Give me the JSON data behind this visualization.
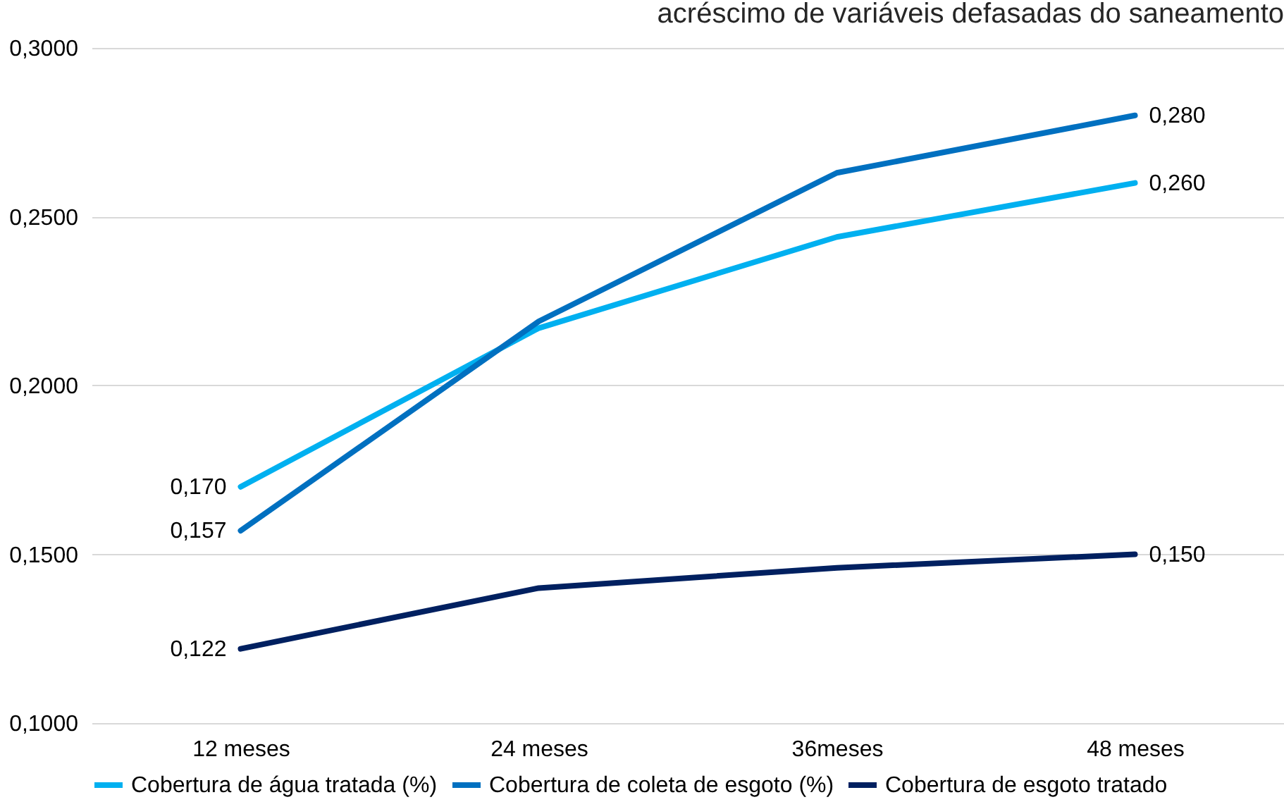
{
  "chart_data": {
    "type": "line",
    "title": "acréscimo de variáveis defasadas do saneamento",
    "categories": [
      "12 meses",
      "24 meses",
      "36meses",
      "48 meses"
    ],
    "series": [
      {
        "name": "Cobertura de água tratada (%)",
        "color": "#00b0f0",
        "values": [
          0.17,
          0.217,
          0.244,
          0.26
        ],
        "value_labels": [
          "0,170",
          null,
          null,
          "0,260"
        ]
      },
      {
        "name": "Cobertura de coleta de esgoto (%)",
        "color": "#0070c0",
        "values": [
          0.157,
          0.219,
          0.263,
          0.28
        ],
        "value_labels": [
          "0,157",
          null,
          null,
          "0,280"
        ]
      },
      {
        "name": "Cobertura de esgoto tratado",
        "color": "#002060",
        "values": [
          0.122,
          0.14,
          0.146,
          0.15
        ],
        "value_labels": [
          "0,122",
          null,
          null,
          "0,150"
        ]
      }
    ],
    "ylim": [
      0.1,
      0.3
    ],
    "yticks": [
      {
        "value": 0.1,
        "label": "0,1000"
      },
      {
        "value": 0.15,
        "label": "0,1500"
      },
      {
        "value": 0.2,
        "label": "0,2000"
      },
      {
        "value": 0.25,
        "label": "0,2500"
      },
      {
        "value": 0.3,
        "label": "0,3000"
      }
    ],
    "grid": "y",
    "legend": "bottom",
    "marker": "none",
    "line_style": "solid"
  }
}
